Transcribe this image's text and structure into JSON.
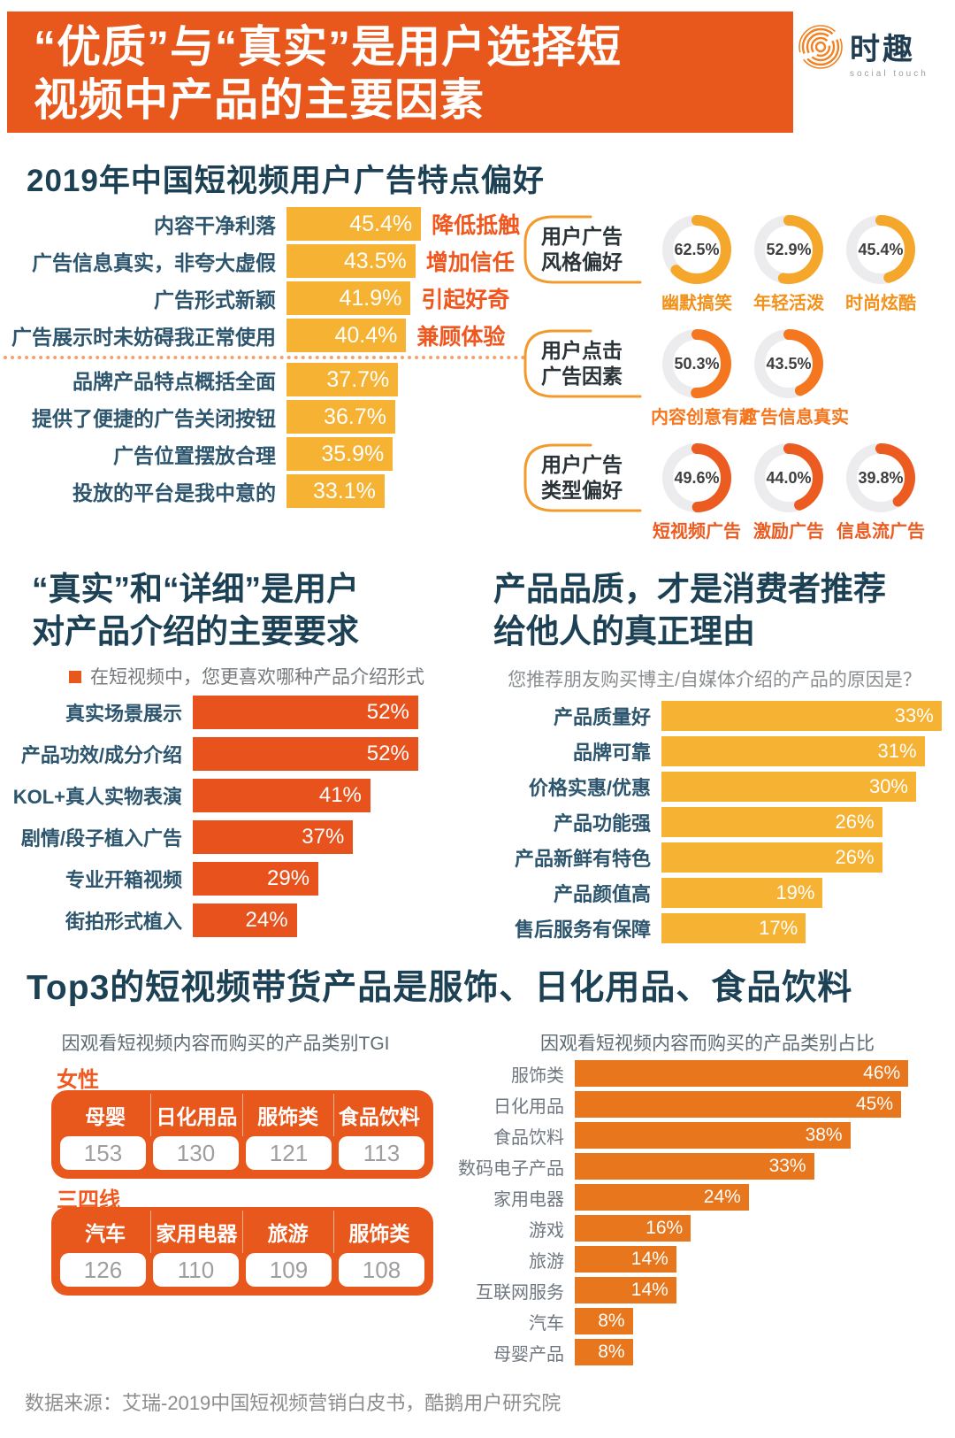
{
  "header": {
    "title_line1": "“优质”与“真实”是用户选择短",
    "title_line2": "视频中产品的主要因素",
    "banner_color": "#E8581C",
    "logo": {
      "icon": "spiral-rings-icon",
      "name": "时趣",
      "subtitle": "social touch"
    }
  },
  "sections": {
    "top3_title": "Top3的短视频带货产品是服饰、日化用品、食品饮料"
  },
  "footer": {
    "source": "数据来源：艾瑞-2019中国短视频营销白皮书，酷鹅用户研究院"
  },
  "colors": {
    "navy": "#1D4154",
    "yellow_bar": "#F6B233",
    "red_orange_bar": "#E8531D",
    "orange_bar": "#E8761C",
    "annotation_orange": "#F0571F",
    "donut_track": "#ECECEE"
  },
  "chart_data": [
    {
      "id": "ad_traits",
      "type": "bar",
      "title": "2019年中国短视频用户广告特点偏好",
      "categories": [
        "内容干净利落",
        "广告信息真实，非夸大虚假",
        "广告形式新颖",
        "广告展示时未妨碍我正常使用",
        "品牌产品特点概括全面",
        "提供了便捷的广告关闭按钮",
        "广告位置摆放合理",
        "投放的平台是我中意的"
      ],
      "values": [
        45.4,
        43.5,
        41.9,
        40.4,
        37.7,
        36.7,
        35.9,
        33.1
      ],
      "value_labels": [
        "45.4%",
        "43.5%",
        "41.9%",
        "40.4%",
        "37.7%",
        "36.7%",
        "35.9%",
        "33.1%"
      ],
      "annotations": [
        "降低抵触",
        "增加信任",
        "引起好奇",
        "兼顾体验",
        "",
        "",
        "",
        ""
      ],
      "separator_after": 3,
      "bar_color": "#F6B233",
      "xlim": [
        0,
        50
      ],
      "grid": false
    },
    {
      "id": "donut_prefs",
      "type": "donut",
      "groups": [
        {
          "label_line1": "用户广告",
          "label_line2": "风格偏好",
          "color": "#F5A72B",
          "label_color": "#F2921D",
          "items": [
            {
              "label": "幽默搞笑",
              "value": 62.5,
              "value_label": "62.5%"
            },
            {
              "label": "年轻活泼",
              "value": 52.9,
              "value_label": "52.9%"
            },
            {
              "label": "时尚炫酷",
              "value": 45.4,
              "value_label": "45.4%"
            }
          ]
        },
        {
          "label_line1": "用户点击",
          "label_line2": "广告因素",
          "color": "#F4771F",
          "label_color": "#F4771F",
          "items": [
            {
              "label": "内容创意有趣",
              "value": 50.3,
              "value_label": "50.3%"
            },
            {
              "label": "广告信息真实",
              "value": 43.5,
              "value_label": "43.5%"
            }
          ]
        },
        {
          "label_line1": "用户广告",
          "label_line2": "类型偏好",
          "color": "#EC5B20",
          "label_color": "#EC5B20",
          "items": [
            {
              "label": "短视频广告",
              "value": 49.6,
              "value_label": "49.6%"
            },
            {
              "label": "激励广告",
              "value": 44.0,
              "value_label": "44.0%"
            },
            {
              "label": "信息流广告",
              "value": 39.8,
              "value_label": "39.8%"
            }
          ]
        }
      ]
    },
    {
      "id": "intro_forms",
      "type": "bar",
      "title_line1": "“真实”和“详细”是用户",
      "title_line2": "对产品介绍的主要要求",
      "subtitle": "在短视频中，您更喜欢哪种产品介绍形式",
      "categories": [
        "真实场景展示",
        "产品功效/成分介绍",
        "KOL+真人实物表演",
        "剧情/段子植入广告",
        "专业开箱视频",
        "街拍形式植入"
      ],
      "values": [
        52,
        52,
        41,
        37,
        29,
        24
      ],
      "value_labels": [
        "52%",
        "52%",
        "41%",
        "37%",
        "29%",
        "24%"
      ],
      "bar_color": "#E8531D",
      "xlim": [
        0,
        55
      ],
      "grid": false
    },
    {
      "id": "recommend_reasons",
      "type": "bar",
      "title_line1": "产品品质，才是消费者推荐",
      "title_line2": "给他人的真正理由",
      "subtitle": "您推荐朋友购买博主/自媒体介绍的产品的原因是？",
      "categories": [
        "产品质量好",
        "品牌可靠",
        "价格实惠/优惠",
        "产品功能强",
        "产品新鲜有特色",
        "产品颜值高",
        "售后服务有保障"
      ],
      "values": [
        33,
        31,
        30,
        26,
        26,
        19,
        17
      ],
      "value_labels": [
        "33%",
        "31%",
        "30%",
        "26%",
        "26%",
        "19%",
        "17%"
      ],
      "bar_color": "#F6B233",
      "xlim": [
        0,
        35
      ],
      "grid": false
    },
    {
      "id": "tgi_female",
      "type": "table",
      "subtitle": "因观看短视频内容而购买的产品类别TGI",
      "group_label": "女性",
      "headers": [
        "母婴",
        "日化用品",
        "服饰类",
        "食品饮料"
      ],
      "values": [
        153,
        130,
        121,
        113
      ]
    },
    {
      "id": "tgi_tier34",
      "type": "table",
      "group_label": "三四线",
      "headers": [
        "汽车",
        "家用电器",
        "旅游",
        "服饰类"
      ],
      "values": [
        126,
        110,
        109,
        108
      ]
    },
    {
      "id": "category_share",
      "type": "bar",
      "subtitle": "因观看短视频内容而购买的产品类别占比",
      "categories": [
        "服饰类",
        "日化用品",
        "食品饮料",
        "数码电子产品",
        "家用电器",
        "游戏",
        "旅游",
        "互联网服务",
        "汽车",
        "母婴产品"
      ],
      "values": [
        46,
        45,
        38,
        33,
        24,
        16,
        14,
        14,
        8,
        8
      ],
      "value_labels": [
        "46%",
        "45%",
        "38%",
        "33%",
        "24%",
        "16%",
        "14%",
        "14%",
        "8%",
        "8%"
      ],
      "bar_color": "#E8761C",
      "xlim": [
        0,
        50
      ],
      "grid": false
    }
  ]
}
